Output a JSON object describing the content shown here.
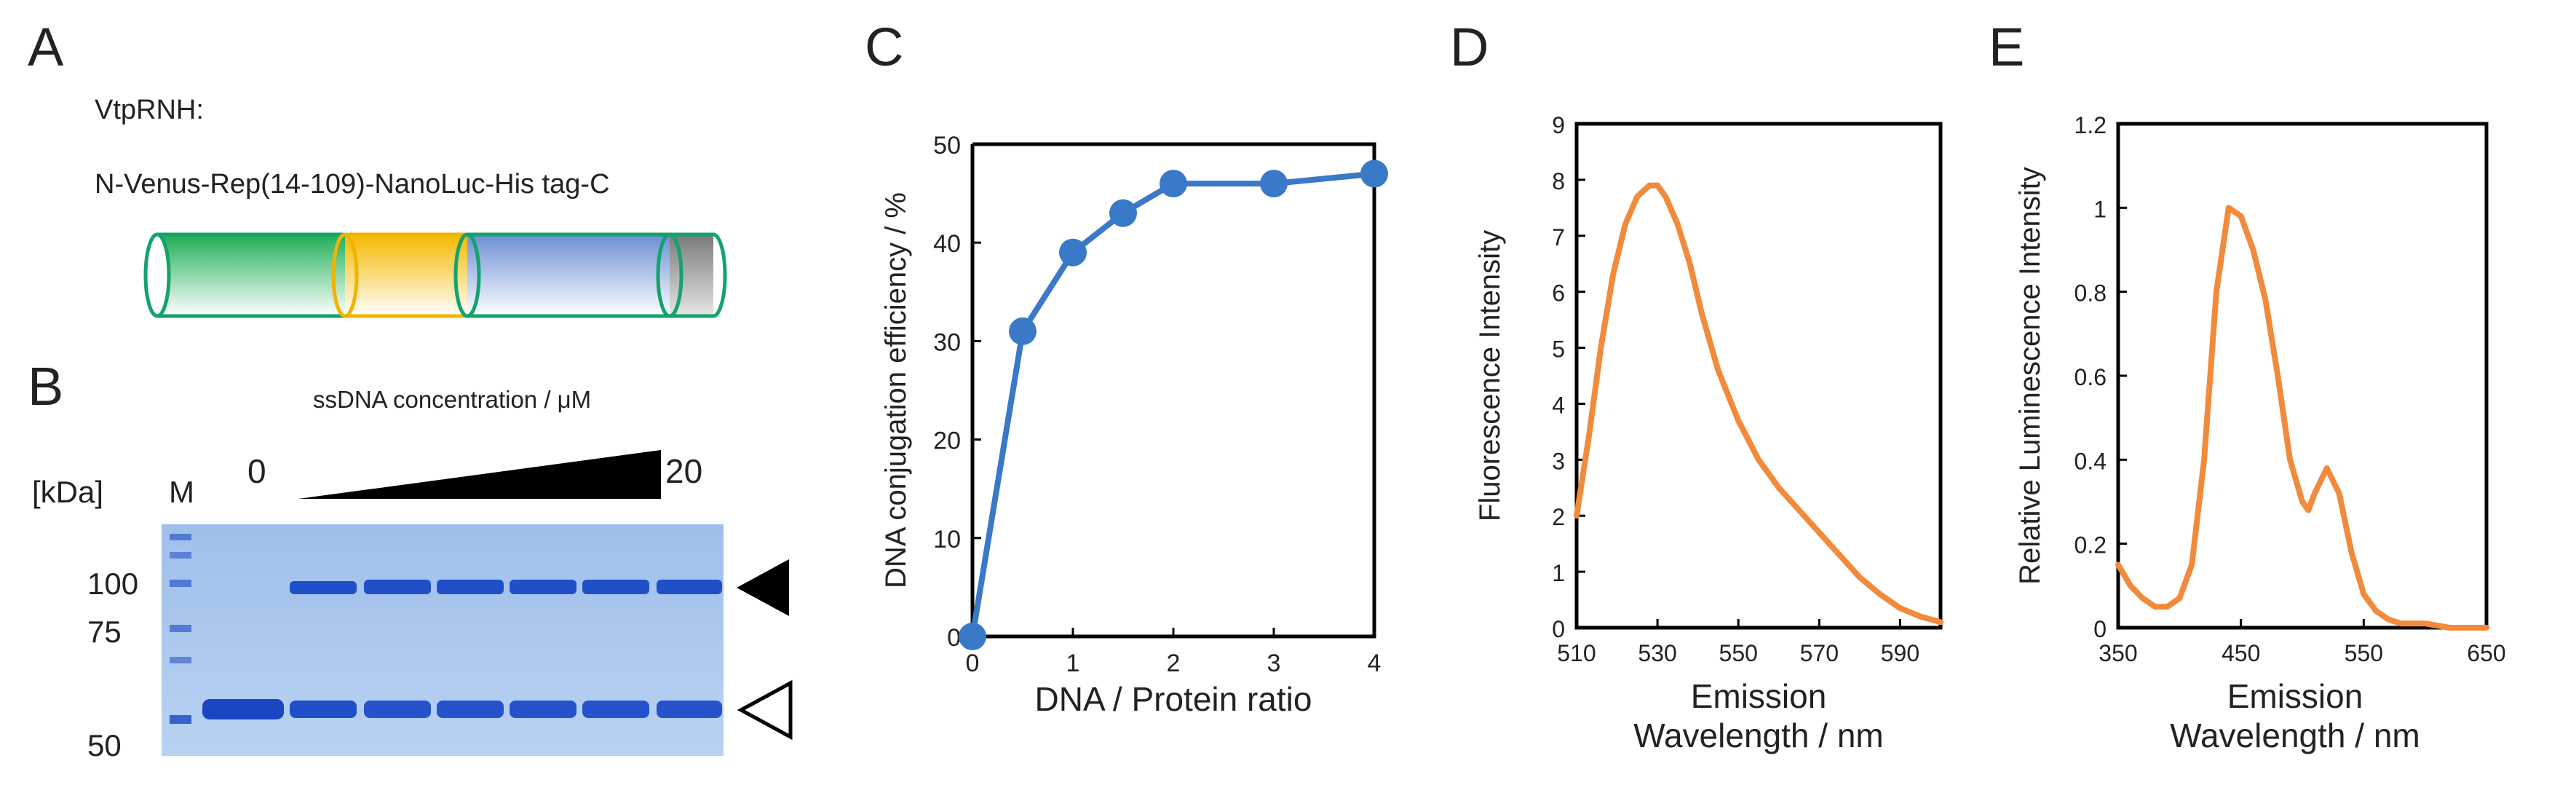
{
  "panels": {
    "A": {
      "letter": "A",
      "title": "VtpRNH:",
      "construct": "N-Venus-Rep(14-109)-NanoLuc-His tag-C",
      "colors": {
        "venus": "#1fae55",
        "rep": "#f5b800",
        "nanoluc": "#6b8fd6",
        "his": "#888888",
        "outline": "#13a36b"
      }
    },
    "B": {
      "letter": "B",
      "header": "ssDNA concentration / μM",
      "conc_start": "0",
      "conc_end": "20",
      "unit_label": "[kDa]",
      "marker_lane": "M",
      "mw_labels": [
        "100",
        "75",
        "50"
      ],
      "gel_color": "#a9c7ec",
      "band_color": "#1f4fc9"
    },
    "C": {
      "letter": "C",
      "chart_data": {
        "type": "line",
        "title": "",
        "xlabel": "DNA / Protein ratio",
        "ylabel": "DNA conjugation efficiency / %",
        "x": [
          0,
          0.5,
          1,
          1.5,
          2,
          3,
          4
        ],
        "y": [
          0,
          31,
          39,
          43,
          46,
          46,
          47
        ],
        "xlim": [
          0,
          4
        ],
        "ylim": [
          0,
          50
        ],
        "xticks": [
          "0",
          "1",
          "2",
          "3",
          "4"
        ],
        "yticks": [
          "0",
          "10",
          "20",
          "30",
          "40",
          "50"
        ],
        "color": "#3a78c8"
      }
    },
    "D": {
      "letter": "D",
      "chart_data": {
        "type": "line",
        "title": "",
        "xlabel": "Emission",
        "xlabel2": "Wavelength / nm",
        "ylabel": "Fluorescence Intensity",
        "x": [
          510,
          513,
          516,
          519,
          522,
          525,
          528,
          530,
          532,
          535,
          538,
          541,
          545,
          550,
          555,
          560,
          565,
          570,
          575,
          580,
          585,
          590,
          595,
          600
        ],
        "y": [
          2.0,
          3.4,
          5.0,
          6.3,
          7.2,
          7.7,
          7.9,
          7.9,
          7.7,
          7.2,
          6.5,
          5.6,
          4.6,
          3.7,
          3.0,
          2.5,
          2.1,
          1.7,
          1.3,
          0.9,
          0.6,
          0.35,
          0.2,
          0.1
        ],
        "xlim": [
          510,
          600
        ],
        "ylim": [
          0,
          9
        ],
        "xticks": [
          "510",
          "530",
          "550",
          "570",
          "590"
        ],
        "yticks": [
          "0",
          "1",
          "2",
          "3",
          "4",
          "5",
          "6",
          "7",
          "8",
          "9"
        ],
        "color": "#f28a3c"
      }
    },
    "E": {
      "letter": "E",
      "chart_data": {
        "type": "line",
        "title": "",
        "xlabel": "Emission",
        "xlabel2": "Wavelength / nm",
        "ylabel": "Relative Luminescence Intensity",
        "x": [
          350,
          360,
          370,
          380,
          390,
          400,
          410,
          420,
          430,
          440,
          450,
          460,
          470,
          480,
          490,
          500,
          505,
          510,
          520,
          530,
          540,
          550,
          560,
          570,
          580,
          600,
          620,
          640,
          650
        ],
        "y": [
          0.15,
          0.1,
          0.07,
          0.05,
          0.05,
          0.07,
          0.15,
          0.4,
          0.8,
          1.0,
          0.98,
          0.9,
          0.78,
          0.6,
          0.4,
          0.3,
          0.28,
          0.32,
          0.38,
          0.32,
          0.18,
          0.08,
          0.04,
          0.02,
          0.01,
          0.01,
          0.0,
          0.0,
          0.0
        ],
        "xlim": [
          350,
          650
        ],
        "ylim": [
          0,
          1.2
        ],
        "xticks": [
          "350",
          "450",
          "550",
          "650"
        ],
        "yticks": [
          "0",
          "0.2",
          "0.4",
          "0.6",
          "0.8",
          "1",
          "1.2"
        ],
        "color": "#f28a3c"
      }
    }
  }
}
